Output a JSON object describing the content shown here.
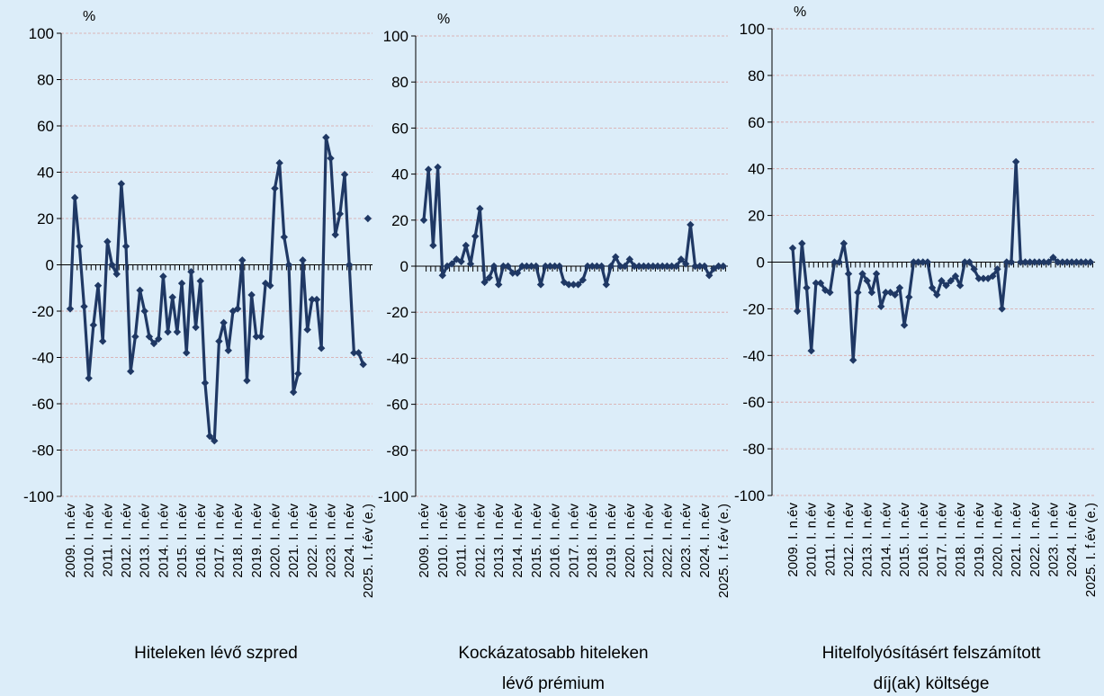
{
  "chart_data": [
    {
      "type": "line",
      "title": "Hiteleken lévő szpred",
      "unit": "%",
      "categories": [
        "2009. I. n.év",
        null,
        null,
        null,
        "2010. I. n.év",
        null,
        null,
        null,
        "2011. I. n.év",
        null,
        null,
        null,
        "2012. I. n.év",
        null,
        null,
        null,
        "2013. I. n.év",
        null,
        null,
        null,
        "2014. I. n.év",
        null,
        null,
        null,
        "2015. I. n.év",
        null,
        null,
        null,
        "2016. I. n.év",
        null,
        null,
        null,
        "2017. I. n.év",
        null,
        null,
        null,
        "2018. I. n.év",
        null,
        null,
        null,
        "2019. I. n.év",
        null,
        null,
        null,
        "2020. I. n.év",
        null,
        null,
        null,
        "2021. I. n.év",
        null,
        null,
        null,
        "2022. I. n.év",
        null,
        null,
        null,
        "2023. I. n.év",
        null,
        null,
        null,
        "2024. I. n.év",
        null,
        null,
        null,
        "2025. I. f.év (e.)"
      ],
      "series": [
        {
          "color": "#1f3864",
          "values": [
            -19,
            29,
            8,
            -18,
            -49,
            -26,
            -9,
            -33,
            10,
            0,
            -4,
            35,
            8,
            -46,
            -31,
            -11,
            -20,
            -31,
            -34,
            -32,
            -5,
            -29,
            -14,
            -29,
            -8,
            -38,
            -3,
            -27,
            -7,
            -51,
            -74,
            -76,
            -33,
            -25,
            -37,
            -20,
            -19,
            2,
            -50,
            -13,
            -31,
            -31,
            -8,
            -9,
            33,
            44,
            12,
            0,
            -55,
            -47,
            2,
            -28,
            -15,
            -15,
            -36,
            55,
            46,
            13,
            22,
            39,
            0,
            -38,
            -38,
            -43,
            null
          ]
        },
        {
          "color": "#1f3864",
          "values": [
            null,
            null,
            null,
            null,
            null,
            null,
            null,
            null,
            null,
            null,
            null,
            null,
            null,
            null,
            null,
            null,
            null,
            null,
            null,
            null,
            null,
            null,
            null,
            null,
            null,
            null,
            null,
            null,
            null,
            null,
            null,
            null,
            null,
            null,
            null,
            null,
            null,
            null,
            null,
            null,
            null,
            null,
            null,
            null,
            null,
            null,
            null,
            null,
            null,
            null,
            null,
            null,
            null,
            null,
            null,
            null,
            null,
            null,
            null,
            null,
            null,
            null,
            null,
            null,
            20
          ]
        }
      ],
      "ylim": [
        -100,
        100
      ],
      "yticks": [
        -100,
        -80,
        -60,
        -40,
        -20,
        0,
        20,
        40,
        60,
        80,
        100
      ],
      "grid": true
    },
    {
      "type": "line",
      "title": "Kockázatosabb hiteleken lévő prémium",
      "unit": "%",
      "categories": [
        "2009. I. n.év",
        null,
        null,
        null,
        "2010. I. n.év",
        null,
        null,
        null,
        "2011. I. n.év",
        null,
        null,
        null,
        "2012. I. n.év",
        null,
        null,
        null,
        "2013. I. n.év",
        null,
        null,
        null,
        "2014. I. n.év",
        null,
        null,
        null,
        "2015. I. n.év",
        null,
        null,
        null,
        "2016. I. n.év",
        null,
        null,
        null,
        "2017. I. n.év",
        null,
        null,
        null,
        "2018. I. n.év",
        null,
        null,
        null,
        "2019. I. n.év",
        null,
        null,
        null,
        "2020. I. n.év",
        null,
        null,
        null,
        "2021. I. n.év",
        null,
        null,
        null,
        "2022. I. n.év",
        null,
        null,
        null,
        "2023. I. n.év",
        null,
        null,
        null,
        "2024. I. n.év",
        null,
        null,
        null,
        "2025. I. f.év (e.)"
      ],
      "series": [
        {
          "color": "#1f3864",
          "values": [
            20,
            42,
            9,
            43,
            -4,
            0,
            1,
            3,
            2,
            9,
            1,
            13,
            25,
            -7,
            -5,
            0,
            -8,
            0,
            0,
            -3,
            -3,
            0,
            0,
            0,
            0,
            -8,
            0,
            0,
            0,
            0,
            -7,
            -8,
            -8,
            -8,
            -6,
            0,
            0,
            0,
            0,
            -8,
            0,
            4,
            0,
            0,
            3,
            0,
            0,
            0,
            0,
            0,
            0,
            0,
            0,
            0,
            0,
            3,
            1,
            18,
            0,
            0,
            0,
            -4,
            -1,
            0,
            null
          ]
        },
        {
          "color": "#1f3864",
          "values": [
            null,
            null,
            null,
            null,
            null,
            null,
            null,
            null,
            null,
            null,
            null,
            null,
            null,
            null,
            null,
            null,
            null,
            null,
            null,
            null,
            null,
            null,
            null,
            null,
            null,
            null,
            null,
            null,
            null,
            null,
            null,
            null,
            null,
            null,
            null,
            null,
            null,
            null,
            null,
            null,
            null,
            null,
            null,
            null,
            null,
            null,
            null,
            null,
            null,
            null,
            null,
            null,
            null,
            null,
            null,
            null,
            null,
            null,
            null,
            null,
            null,
            null,
            null,
            null,
            0
          ]
        }
      ],
      "ylim": [
        -100,
        100
      ],
      "yticks": [
        -100,
        -80,
        -60,
        -40,
        -20,
        0,
        20,
        40,
        60,
        80,
        100
      ],
      "grid": true
    },
    {
      "type": "line",
      "title": "Hitelfolyósításért felszámított díj(ak) költsége",
      "unit": "%",
      "categories": [
        "2009. I. n.év",
        null,
        null,
        null,
        "2010. I. n.év",
        null,
        null,
        null,
        "2011. I. n.év",
        null,
        null,
        null,
        "2012. I. n.év",
        null,
        null,
        null,
        "2013. I. n.év",
        null,
        null,
        null,
        "2014. I. n.év",
        null,
        null,
        null,
        "2015. I. n.év",
        null,
        null,
        null,
        "2016. I. n.év",
        null,
        null,
        null,
        "2017. I. n.év",
        null,
        null,
        null,
        "2018. I. n.év",
        null,
        null,
        null,
        "2019. I. n.év",
        null,
        null,
        null,
        "2020. I. n.év",
        null,
        null,
        null,
        "2021. I. n.év",
        null,
        null,
        null,
        "2022. I. n.év",
        null,
        null,
        null,
        "2023. I. n.év",
        null,
        null,
        null,
        "2024. I. n.év",
        null,
        null,
        null,
        "2025. I. f.év (e.)"
      ],
      "series": [
        {
          "color": "#1f3864",
          "values": [
            6,
            -21,
            8,
            -11,
            -38,
            -9,
            -9,
            -12,
            -13,
            0,
            0,
            8,
            -5,
            -42,
            -13,
            -5,
            -8,
            -13,
            -5,
            -19,
            -13,
            -13,
            -14,
            -11,
            -27,
            -15,
            0,
            0,
            0,
            0,
            -11,
            -14,
            -8,
            -10,
            -8,
            -6,
            -10,
            0,
            0,
            -3,
            -7,
            -7,
            -7,
            -6,
            -3,
            -20,
            0,
            0,
            43,
            0,
            0,
            0,
            0,
            0,
            0,
            0,
            2,
            0,
            0,
            0,
            0,
            0,
            0,
            0,
            null
          ]
        },
        {
          "color": "#1f3864",
          "values": [
            null,
            null,
            null,
            null,
            null,
            null,
            null,
            null,
            null,
            null,
            null,
            null,
            null,
            null,
            null,
            null,
            null,
            null,
            null,
            null,
            null,
            null,
            null,
            null,
            null,
            null,
            null,
            null,
            null,
            null,
            null,
            null,
            null,
            null,
            null,
            null,
            null,
            null,
            null,
            null,
            null,
            null,
            null,
            null,
            null,
            null,
            null,
            null,
            null,
            null,
            null,
            null,
            null,
            null,
            null,
            null,
            null,
            null,
            null,
            null,
            null,
            null,
            null,
            null,
            0
          ]
        }
      ],
      "ylim": [
        -100,
        100
      ],
      "yticks": [
        -100,
        -80,
        -60,
        -40,
        -20,
        0,
        20,
        40,
        60,
        80,
        100
      ],
      "grid": true
    }
  ]
}
